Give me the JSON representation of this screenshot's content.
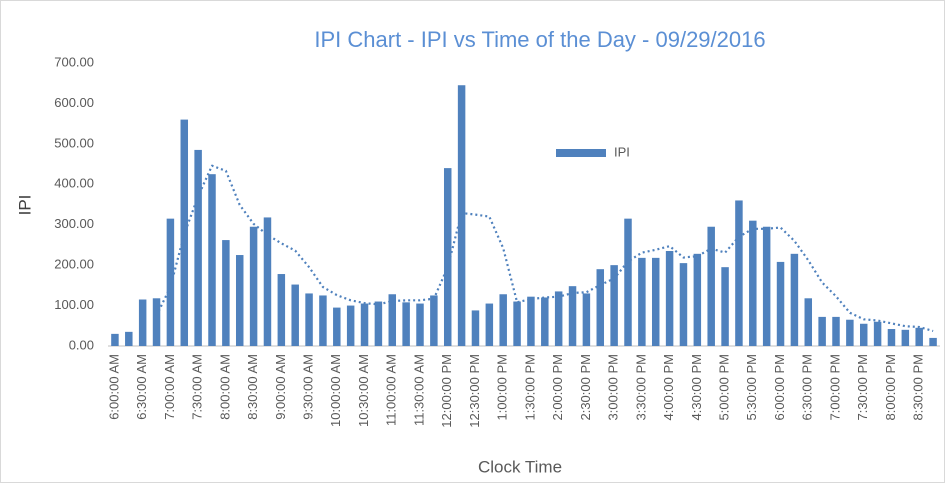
{
  "chart_data": {
    "type": "bar",
    "title": "IPI Chart - IPI vs Time of the Day - 09/29/2016",
    "x_label": "Clock Time",
    "y_label": "IPI",
    "categories": [
      "6:00:00 AM",
      null,
      "6:30:00 AM",
      null,
      "7:00:00 AM",
      null,
      "7:30:00 AM",
      null,
      "8:00:00 AM",
      null,
      "8:30:00 AM",
      null,
      "9:00:00 AM",
      null,
      "9:30:00 AM",
      null,
      "10:00:00 AM",
      null,
      "10:30:00 AM",
      null,
      "11:00:00 AM",
      null,
      "11:30:00 AM",
      null,
      "12:00:00 PM",
      null,
      "12:30:00 PM",
      null,
      "1:00:00 PM",
      null,
      "1:30:00 PM",
      null,
      "2:00:00 PM",
      null,
      "2:30:00 PM",
      null,
      "3:00:00 PM",
      null,
      "3:30:00 PM",
      null,
      "4:00:00 PM",
      null,
      "4:30:00 PM",
      null,
      "5:00:00 PM",
      null,
      "5:30:00 PM",
      null,
      "6:00:00 PM",
      null,
      "6:30:00 PM",
      null,
      "7:00:00 PM",
      null,
      "7:30:00 PM",
      null,
      "8:00:00 PM",
      null,
      "8:30:00 PM",
      null
    ],
    "series": [
      {
        "name": "IPI",
        "color": "#4f81bd",
        "values": [
          30,
          35,
          115,
          118,
          315,
          560,
          485,
          425,
          262,
          225,
          295,
          318,
          178,
          152,
          130,
          125,
          95,
          100,
          105,
          110,
          128,
          108,
          105,
          125,
          440,
          645,
          88,
          105,
          128,
          110,
          122,
          120,
          135,
          148,
          130,
          190,
          200,
          315,
          218,
          218,
          235,
          205,
          228,
          295,
          195,
          360,
          310,
          295,
          208,
          228,
          118,
          72,
          72,
          65,
          55,
          60,
          42,
          40,
          45,
          20
        ]
      }
    ],
    "trendline": {
      "color": "#4f81bd",
      "style": "dotted",
      "values": [
        null,
        null,
        null,
        75,
        146,
        277,
        370,
        446,
        433,
        349,
        302,
        275,
        254,
        236,
        195,
        146,
        126,
        113,
        106,
        103,
        111,
        113,
        113,
        117,
        195,
        329,
        325,
        320,
        242,
        108,
        116,
        120,
        122,
        131,
        133,
        151,
        167,
        209,
        231,
        238,
        247,
        219,
        222,
        241,
        231,
        270,
        290,
        290,
        293,
        260,
        212,
        157,
        123,
        82,
        66,
        63,
        56,
        49,
        47,
        37
      ]
    },
    "ylim": [
      0,
      700
    ],
    "yticks": [
      {
        "value": 0,
        "label": "0.00"
      },
      {
        "value": 100,
        "label": "100.00"
      },
      {
        "value": 200,
        "label": "200.00"
      },
      {
        "value": 300,
        "label": "300.00"
      },
      {
        "value": 400,
        "label": "400.00"
      },
      {
        "value": 500,
        "label": "500.00"
      },
      {
        "value": 600,
        "label": "600.00"
      },
      {
        "value": 700,
        "label": "700.00"
      }
    ],
    "grid": false,
    "legend": "top-center"
  }
}
